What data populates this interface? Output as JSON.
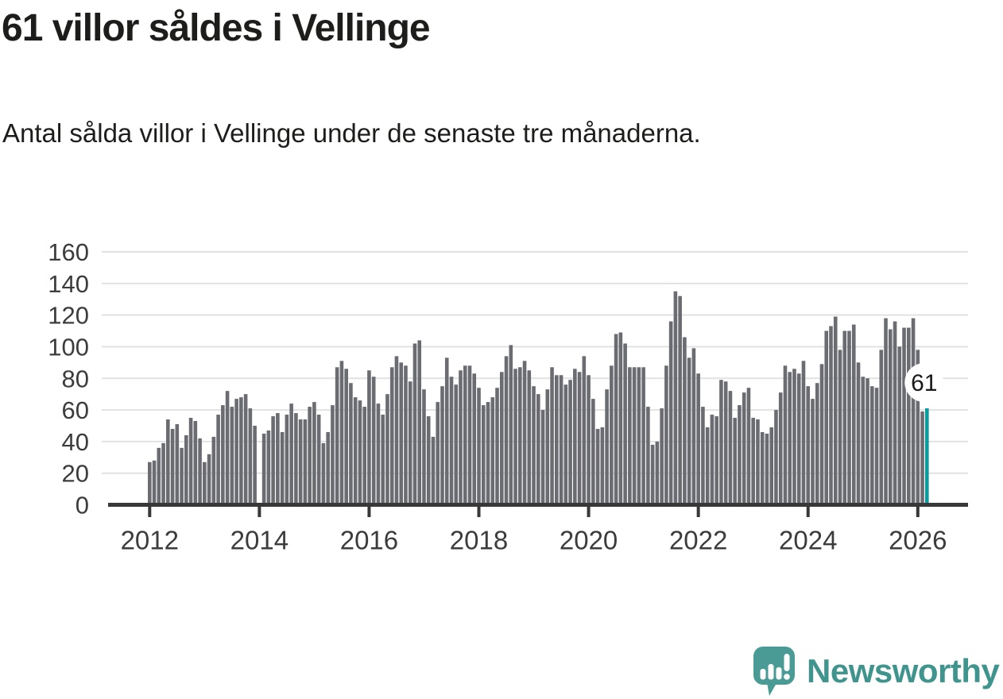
{
  "header": {
    "title": "61 villor såldes i Vellinge",
    "subtitle": "Antal sålda villor i Vellinge under de senaste tre månaderna."
  },
  "chart_data": {
    "type": "bar",
    "title": "61 villor såldes i Vellinge",
    "xlabel": "",
    "ylabel": "",
    "x_start": "2012-01",
    "x_end": "2026-03",
    "x_tick_labels": [
      "2012",
      "2014",
      "2016",
      "2018",
      "2020",
      "2022",
      "2024",
      "2026"
    ],
    "y_tick_labels": [
      "0",
      "20",
      "40",
      "60",
      "80",
      "100",
      "120",
      "140",
      "160"
    ],
    "ylim": [
      0,
      160
    ],
    "grid": true,
    "legend": "none",
    "values": [
      27,
      28,
      36,
      39,
      54,
      48,
      51,
      36,
      44,
      55,
      53,
      42,
      27,
      32,
      43,
      57,
      63,
      72,
      62,
      67,
      68,
      70,
      61,
      50,
      0,
      45,
      47,
      56,
      58,
      46,
      57,
      64,
      58,
      54,
      54,
      62,
      65,
      57,
      39,
      46,
      63,
      87,
      91,
      86,
      77,
      68,
      66,
      62,
      85,
      81,
      64,
      57,
      70,
      87,
      94,
      90,
      88,
      78,
      102,
      104,
      73,
      56,
      43,
      65,
      75,
      93,
      81,
      76,
      85,
      88,
      88,
      83,
      74,
      63,
      65,
      68,
      74,
      84,
      94,
      101,
      86,
      87,
      91,
      85,
      75,
      70,
      60,
      73,
      87,
      82,
      82,
      76,
      79,
      86,
      84,
      94,
      82,
      67,
      48,
      49,
      73,
      88,
      108,
      109,
      102,
      87,
      87,
      87,
      87,
      62,
      38,
      40,
      61,
      88,
      116,
      135,
      132,
      106,
      93,
      99,
      83,
      62,
      49,
      57,
      56,
      79,
      78,
      72,
      55,
      63,
      71,
      74,
      55,
      54,
      46,
      45,
      49,
      60,
      71,
      88,
      84,
      86,
      83,
      91,
      75,
      67,
      77,
      89,
      110,
      113,
      119,
      98,
      110,
      110,
      114,
      90,
      81,
      80,
      75,
      74,
      98,
      118,
      111,
      116,
      100,
      112,
      112,
      118,
      98,
      59,
      61
    ],
    "highlight_index": 170,
    "highlight_value_label": "61",
    "bar_color": "#6a6c72",
    "highlight_color": "#0a9ba0"
  },
  "footer": {
    "brand": "Newsworthy",
    "brand_color": "#40948e",
    "icon_color": "#4a9b95"
  }
}
